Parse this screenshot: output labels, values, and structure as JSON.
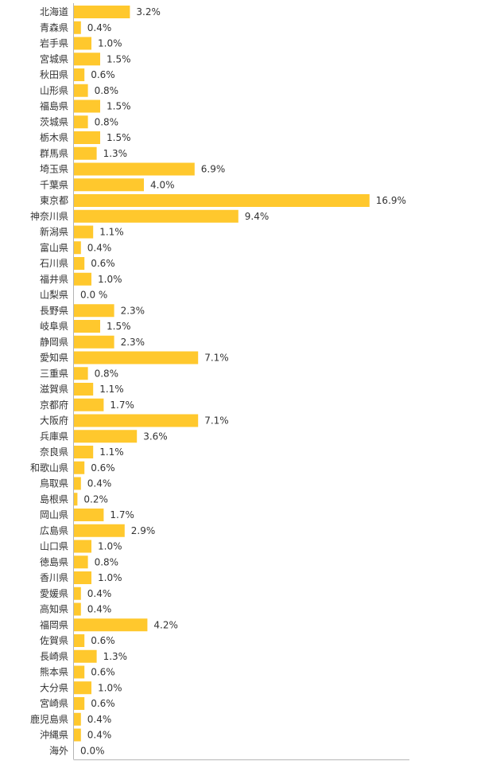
{
  "chart_data": {
    "type": "bar",
    "orientation": "horizontal",
    "title": "",
    "xlabel": "",
    "ylabel": "",
    "grid": false,
    "legend": "none",
    "bar_color": "#FFC82D",
    "axis_color": "#B4B4B4",
    "xlim": [
      0,
      17
    ],
    "categories": [
      "北海道",
      "青森県",
      "岩手県",
      "宮城県",
      "秋田県",
      "山形県",
      "福島県",
      "茨城県",
      "栃木県",
      "群馬県",
      "埼玉県",
      "千葉県",
      "東京都",
      "神奈川県",
      "新潟県",
      "富山県",
      "石川県",
      "福井県",
      "山梨県",
      "長野県",
      "岐阜県",
      "静岡県",
      "愛知県",
      "三重県",
      "滋賀県",
      "京都府",
      "大阪府",
      "兵庫県",
      "奈良県",
      "和歌山県",
      "鳥取県",
      "島根県",
      "岡山県",
      "広島県",
      "山口県",
      "徳島県",
      "香川県",
      "愛媛県",
      "高知県",
      "福岡県",
      "佐賀県",
      "長崎県",
      "熊本県",
      "大分県",
      "宮崎県",
      "鹿児島県",
      "沖縄県",
      "海外"
    ],
    "values": [
      3.2,
      0.4,
      1.0,
      1.5,
      0.6,
      0.8,
      1.5,
      0.8,
      1.5,
      1.3,
      6.9,
      4.0,
      16.9,
      9.4,
      1.1,
      0.4,
      0.6,
      1.0,
      0.0,
      2.3,
      1.5,
      2.3,
      7.1,
      0.8,
      1.1,
      1.7,
      7.1,
      3.6,
      1.1,
      0.6,
      0.4,
      0.2,
      1.7,
      2.9,
      1.0,
      0.8,
      1.0,
      0.4,
      0.4,
      4.2,
      0.6,
      1.3,
      0.6,
      1.0,
      0.6,
      0.4,
      0.4,
      0.0
    ],
    "value_labels": [
      "3.2%",
      "0.4%",
      "1.0%",
      "1.5%",
      "0.6%",
      "0.8%",
      "1.5%",
      "0.8%",
      "1.5%",
      "1.3%",
      "6.9%",
      "4.0%",
      "16.9%",
      "9.4%",
      "1.1%",
      "0.4%",
      "0.6%",
      "1.0%",
      "0.0 %",
      "2.3%",
      "1.5%",
      "2.3%",
      "7.1%",
      "0.8%",
      "1.1%",
      "1.7%",
      "7.1%",
      "3.6%",
      "1.1%",
      "0.6%",
      "0.4%",
      "0.2%",
      "1.7%",
      "2.9%",
      "1.0%",
      "0.8%",
      "1.0%",
      "0.4%",
      "0.4%",
      "4.2%",
      "0.6%",
      "1.3%",
      "0.6%",
      "1.0%",
      "0.6%",
      "0.4%",
      "0.4%",
      "0.0%"
    ]
  }
}
